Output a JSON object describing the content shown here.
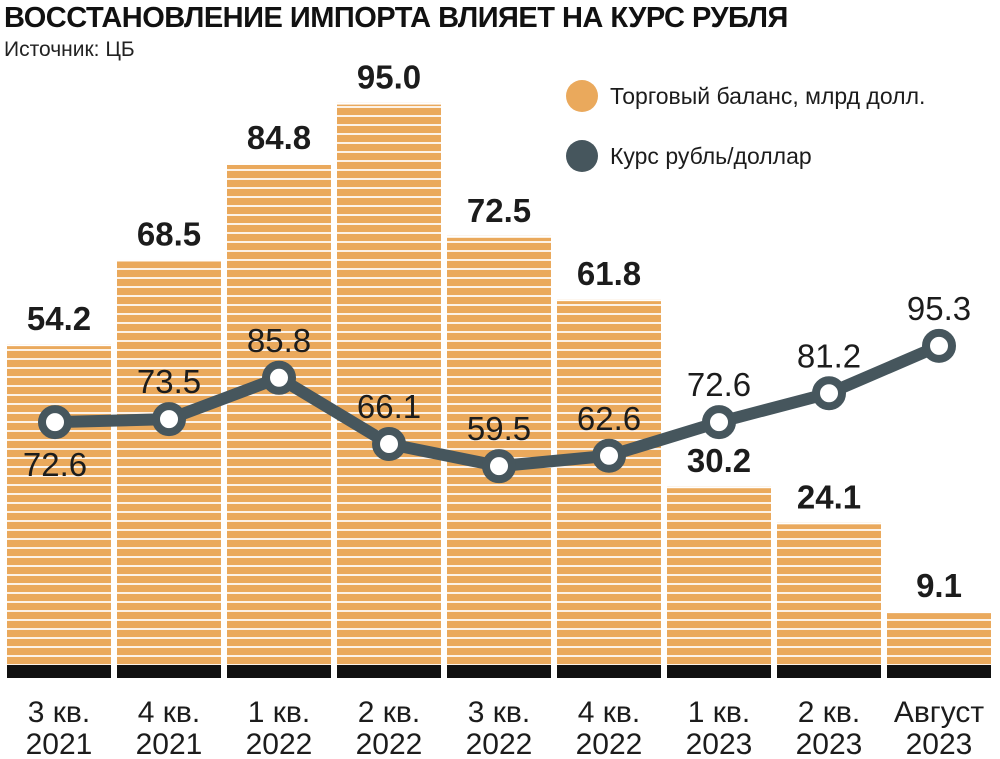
{
  "title": "ВОССТАНОВЛЕНИЕ ИМПОРТА ВЛИЯЕТ НА КУРС РУБЛЯ",
  "source": "Источник: ЦБ",
  "colors": {
    "bar": "#eaa95c",
    "bar_stripe": "#ffffff",
    "line": "#46565d",
    "point_fill": "#ffffff",
    "baseline": "#111111"
  },
  "chart_data": {
    "type": "bar",
    "categories": [
      [
        "3 кв.",
        "2021"
      ],
      [
        "4 кв.",
        "2021"
      ],
      [
        "1 кв.",
        "2022"
      ],
      [
        "2 кв.",
        "2022"
      ],
      [
        "3 кв.",
        "2022"
      ],
      [
        "4 кв.",
        "2022"
      ],
      [
        "1 кв.",
        "2023"
      ],
      [
        "2 кв.",
        "2023"
      ],
      [
        "Август",
        "2023"
      ]
    ],
    "series": [
      {
        "name": "Торговый баланс, млрд долл.",
        "type": "bar",
        "values": [
          54.2,
          68.5,
          84.8,
          95.0,
          72.5,
          61.8,
          30.2,
          24.1,
          9.1
        ],
        "labels": [
          "54.2",
          "68.5",
          "84.8",
          "95.0",
          "72.5",
          "61.8",
          "30.2",
          "24.1",
          "9.1"
        ],
        "color": "#eaa95c"
      },
      {
        "name": "Курс рубль/доллар",
        "type": "line",
        "values": [
          72.6,
          73.5,
          85.8,
          66.1,
          59.5,
          62.6,
          72.6,
          81.2,
          95.3
        ],
        "labels": [
          "72.6",
          "73.5",
          "85.8",
          "66.1",
          "59.5",
          "62.6",
          "72.6",
          "81.2",
          "95.3"
        ],
        "color": "#46565d"
      }
    ],
    "legend_position": "top-right",
    "grid": false
  }
}
